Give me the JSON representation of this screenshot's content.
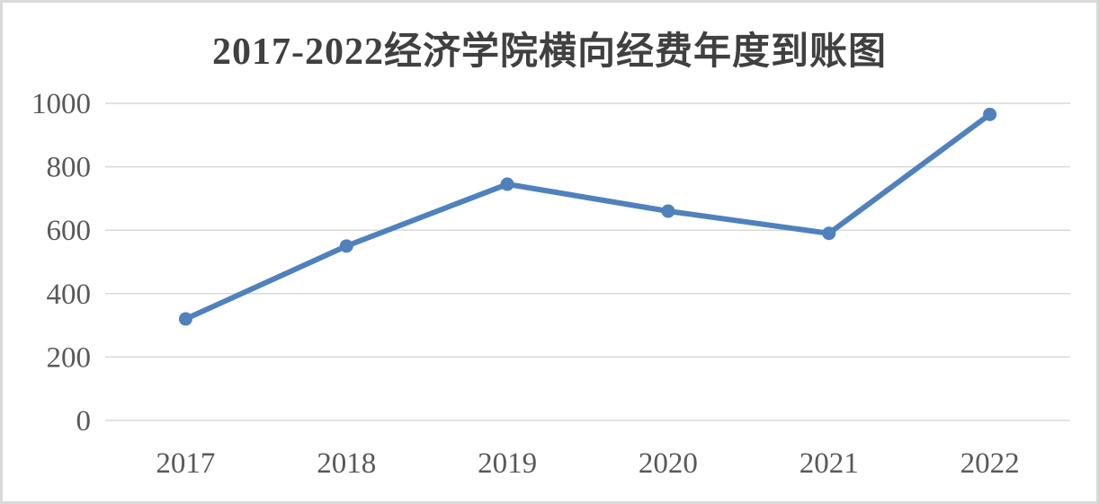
{
  "chart_data": {
    "type": "line",
    "title": "2017-2022经济学院横向经费年度到账图",
    "categories": [
      "2017",
      "2018",
      "2019",
      "2020",
      "2021",
      "2022"
    ],
    "values": [
      320,
      550,
      745,
      660,
      590,
      965
    ],
    "xlabel": "",
    "ylabel": "",
    "ylim": [
      0,
      1000
    ],
    "yticks": [
      0,
      200,
      400,
      600,
      800,
      1000
    ],
    "grid": "horizontal",
    "legend": "none",
    "marker_shape": "circle",
    "line_color": "#4F81BD",
    "gridline_color": "#D9D9D9",
    "tick_label_color": "#595959",
    "title_color": "#404040",
    "frame_border_color": "#D9D9D9",
    "background_color": "#FFFFFF"
  }
}
